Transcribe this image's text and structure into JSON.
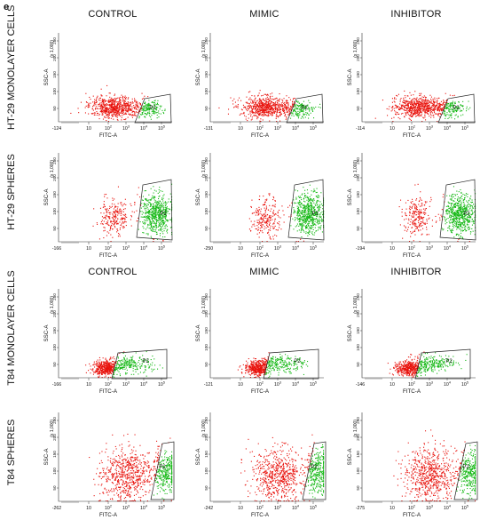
{
  "figure": {
    "panel_letter": "e",
    "group1_columns": [
      "CONTROL",
      "MIMIC",
      "INHIBITOR"
    ],
    "group2_columns": [
      "CONTROL",
      "MIMIC",
      "INHIBITOR"
    ],
    "rows": [
      {
        "label": "HT-29 MONOLAYER CELLS",
        "type": "monolayer",
        "xmins": [
          "-124",
          "-131",
          "-114"
        ]
      },
      {
        "label": "HT-29 SPHERES",
        "type": "spheres_a",
        "xmins": [
          "-166",
          "-250",
          "-194"
        ]
      },
      {
        "label": "T84 MONOLAYER CELLS",
        "type": "monolayer_b",
        "xmins": [
          "-166",
          "-121",
          "-146"
        ]
      },
      {
        "label": "T84 SPHERES",
        "type": "spheres_b",
        "xmins": [
          "-262",
          "-242",
          "-275"
        ]
      }
    ],
    "axis": {
      "x_label": "FITC-A",
      "y_label": "SSC-A",
      "y_scale_note": "(x 1,000)",
      "gate_label": "P2",
      "y_ticks": [
        "50",
        "100",
        "150",
        "200",
        "250"
      ],
      "x_ticks": [
        {
          "b": "10",
          "e": ""
        },
        {
          "b": "10",
          "e": "2"
        },
        {
          "b": "10",
          "e": "3"
        },
        {
          "b": "10",
          "e": "4"
        },
        {
          "b": "10",
          "e": "5"
        }
      ]
    },
    "colors": {
      "negative": "#e8120c",
      "positive": "#14b814",
      "gate": "#222222"
    }
  }
}
